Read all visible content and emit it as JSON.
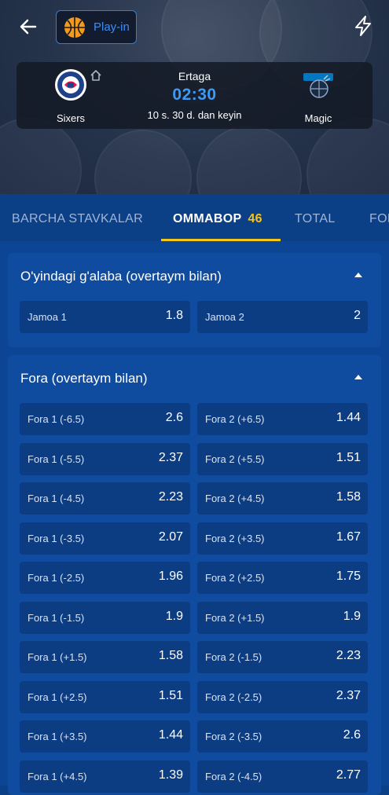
{
  "header": {
    "badge_label": "Play-in",
    "home_team": "Sixers",
    "away_team": "Magic",
    "day": "Ertaga",
    "time": "02:30",
    "countdown": "10 s. 30 d. dan keyin"
  },
  "tabs": [
    {
      "label": "BARCHA STAVKALAR"
    },
    {
      "label": "OMMABOP",
      "count": "46"
    },
    {
      "label": "TOTAL"
    },
    {
      "label": "FOR"
    }
  ],
  "sections": {
    "winner": {
      "title": "O'yindagi g'alaba (overtaym bilan)",
      "odds": [
        {
          "label": "Jamoa 1",
          "value": "1.8"
        },
        {
          "label": "Jamoa 2",
          "value": "2"
        }
      ]
    },
    "handicap": {
      "title": "Fora (overtaym bilan)",
      "rows": [
        {
          "left_label": "Fora 1 (-6.5)",
          "left_value": "2.6",
          "right_label": "Fora 2 (+6.5)",
          "right_value": "1.44"
        },
        {
          "left_label": "Fora 1 (-5.5)",
          "left_value": "2.37",
          "right_label": "Fora 2 (+5.5)",
          "right_value": "1.51"
        },
        {
          "left_label": "Fora 1 (-4.5)",
          "left_value": "2.23",
          "right_label": "Fora 2 (+4.5)",
          "right_value": "1.58"
        },
        {
          "left_label": "Fora 1 (-3.5)",
          "left_value": "2.07",
          "right_label": "Fora 2 (+3.5)",
          "right_value": "1.67"
        },
        {
          "left_label": "Fora 1 (-2.5)",
          "left_value": "1.96",
          "right_label": "Fora 2 (+2.5)",
          "right_value": "1.75"
        },
        {
          "left_label": "Fora 1 (-1.5)",
          "left_value": "1.9",
          "right_label": "Fora 2 (+1.5)",
          "right_value": "1.9"
        },
        {
          "left_label": "Fora 1 (+1.5)",
          "left_value": "1.58",
          "right_label": "Fora 2 (-1.5)",
          "right_value": "2.23"
        },
        {
          "left_label": "Fora 1 (+2.5)",
          "left_value": "1.51",
          "right_label": "Fora 2 (-2.5)",
          "right_value": "2.37"
        },
        {
          "left_label": "Fora 1 (+3.5)",
          "left_value": "1.44",
          "right_label": "Fora 2 (-3.5)",
          "right_value": "2.6"
        },
        {
          "left_label": "Fora 1 (+4.5)",
          "left_value": "1.39",
          "right_label": "Fora 2 (-4.5)",
          "right_value": "2.77"
        }
      ]
    }
  },
  "colors": {
    "accent_blue": "#3d8cf5",
    "highlight_yellow": "#f5c518",
    "background": "#0b3f86"
  }
}
